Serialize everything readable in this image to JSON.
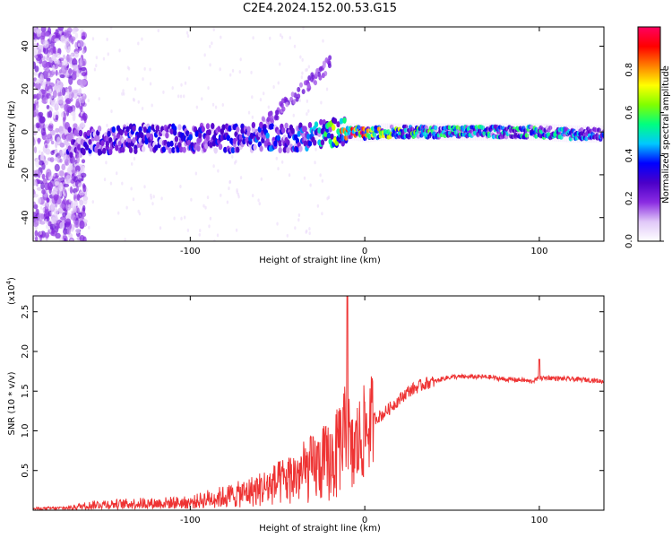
{
  "chart_data": [
    {
      "type": "heatmap",
      "title": "C2E4.2024.152.00.53.G15",
      "xlabel": "Height of straight line (km)",
      "ylabel": "Frequency (Hz)",
      "xlim": [
        -190,
        137
      ],
      "ylim": [
        -51,
        49
      ],
      "x_ticks": [
        -100,
        0,
        100
      ],
      "x_tick_labels": [
        "-100",
        "0",
        "100"
      ],
      "y_ticks": [
        -40,
        -20,
        0,
        20,
        40
      ],
      "y_tick_labels": [
        "-40",
        "-20",
        "0",
        "20",
        "40"
      ],
      "colorbar": {
        "label": "Normalized spectral amplitude",
        "range": [
          0,
          1
        ],
        "ticks": [
          0.0,
          0.2,
          0.4,
          0.6,
          0.8
        ],
        "tick_labels": [
          "0.0",
          "0.2",
          "0.4",
          "0.6",
          "0.8"
        ],
        "colors": [
          "#ffffff",
          "#e0c8f8",
          "#8a2be2",
          "#4b00c8",
          "#0000ff",
          "#00c8ff",
          "#00ff80",
          "#80ff00",
          "#ffff00",
          "#ff8000",
          "#ff0000",
          "#ff0060"
        ]
      },
      "ridge": {
        "x": [
          -190,
          -170,
          -150,
          -130,
          -110,
          -90,
          -70,
          -55,
          -45,
          -35,
          -25,
          -15,
          -5,
          0,
          10,
          20,
          40,
          60,
          80,
          100,
          120,
          137
        ],
        "freq": [
          -6,
          -5,
          -4,
          -3,
          -3,
          -3,
          -3,
          -2,
          -3,
          -2,
          -1,
          0,
          0,
          -1,
          0,
          0,
          0,
          0,
          0,
          0,
          -1,
          -1
        ],
        "amplitude": [
          0.15,
          0.3,
          0.35,
          0.35,
          0.35,
          0.35,
          0.35,
          0.4,
          0.35,
          0.4,
          0.5,
          0.75,
          0.95,
          0.9,
          0.7,
          0.65,
          0.55,
          0.55,
          0.52,
          0.55,
          0.45,
          0.4
        ]
      }
    },
    {
      "type": "line",
      "xlabel": "Height of straight line (km)",
      "ylabel": "SNR (10 * v/v)",
      "yscale_label": "(x10",
      "yscale_exp": "4",
      "xlim": [
        -190,
        137
      ],
      "ylim": [
        0,
        2.7
      ],
      "x_ticks": [
        -100,
        0,
        100
      ],
      "x_tick_labels": [
        "-100",
        "0",
        "100"
      ],
      "y_ticks": [
        0.5,
        1.0,
        1.5,
        2.0,
        2.5
      ],
      "y_tick_labels": [
        "0.5",
        "1.0",
        "1.5",
        "2.0",
        "2.5"
      ],
      "color": "#ee3333",
      "series": [
        {
          "x": [
            -190,
            -170,
            -160,
            -150,
            -140,
            -130,
            -120,
            -110,
            -100,
            -90,
            -80,
            -70,
            -60,
            -50,
            -40,
            -35,
            -30,
            -25,
            -20,
            -15,
            -12,
            -10,
            -8,
            -5,
            -2,
            0,
            5,
            10,
            15,
            20,
            25,
            30,
            35,
            40,
            45,
            50,
            60,
            70,
            80,
            90,
            95,
            100,
            105,
            110,
            120,
            130,
            137
          ],
          "values": [
            0.02,
            0.03,
            0.06,
            0.08,
            0.08,
            0.09,
            0.09,
            0.1,
            0.1,
            0.15,
            0.18,
            0.22,
            0.28,
            0.35,
            0.45,
            0.5,
            0.55,
            0.6,
            0.65,
            0.75,
            0.9,
            1.2,
            0.6,
            0.8,
            0.9,
            1.0,
            1.15,
            1.2,
            1.3,
            1.4,
            1.5,
            1.55,
            1.6,
            1.62,
            1.66,
            1.68,
            1.68,
            1.68,
            1.65,
            1.64,
            1.62,
            1.66,
            1.67,
            1.66,
            1.65,
            1.64,
            1.62
          ]
        }
      ],
      "annotations": [
        {
          "x": -10,
          "value": 2.7
        },
        {
          "x": 100,
          "value": 1.9
        }
      ]
    }
  ]
}
